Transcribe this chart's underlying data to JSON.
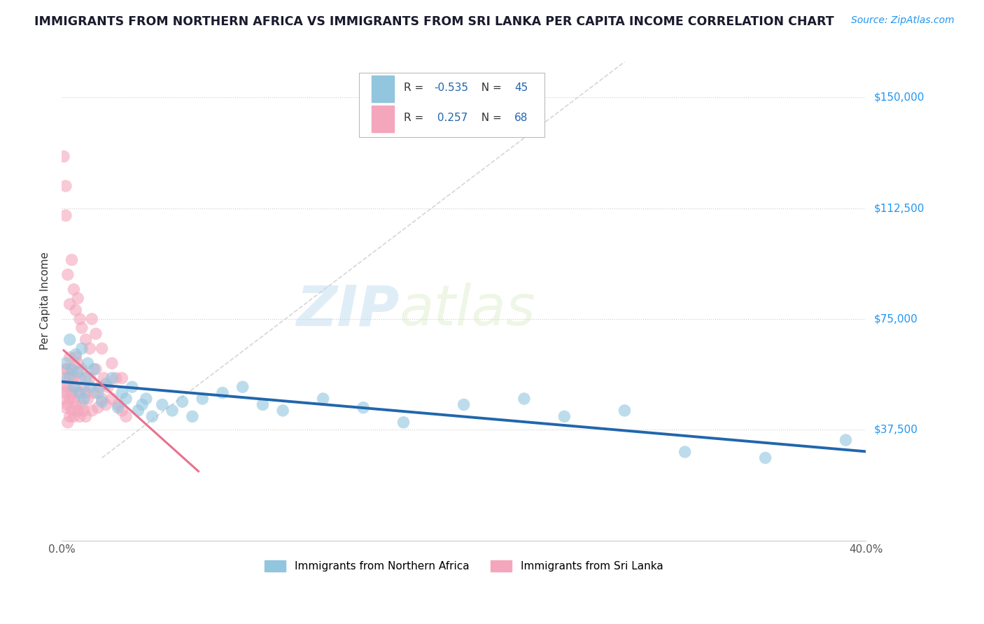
{
  "title": "IMMIGRANTS FROM NORTHERN AFRICA VS IMMIGRANTS FROM SRI LANKA PER CAPITA INCOME CORRELATION CHART",
  "source": "Source: ZipAtlas.com",
  "ylabel": "Per Capita Income",
  "xlim": [
    0.0,
    0.4
  ],
  "ylim": [
    0,
    162500
  ],
  "xticks": [
    0.0,
    0.05,
    0.1,
    0.15,
    0.2,
    0.25,
    0.3,
    0.35,
    0.4
  ],
  "xticklabels": [
    "0.0%",
    "",
    "",
    "",
    "",
    "",
    "",
    "",
    "40.0%"
  ],
  "ytick_values": [
    0,
    37500,
    75000,
    112500,
    150000
  ],
  "ytick_labels": [
    "",
    "$37,500",
    "$75,000",
    "$112,500",
    "$150,000"
  ],
  "legend_R1": "-0.535",
  "legend_N1": "45",
  "legend_R2": "0.257",
  "legend_N2": "68",
  "label_blue": "Immigrants from Northern Africa",
  "label_pink": "Immigrants from Sri Lanka",
  "blue_color": "#92c5de",
  "pink_color": "#f4a6bc",
  "blue_line_color": "#2166ac",
  "pink_line_color": "#e8718d",
  "ref_line_color": "#cccccc",
  "watermark_color": "#cce5f5",
  "blue_scatter_x": [
    0.002,
    0.003,
    0.004,
    0.005,
    0.006,
    0.007,
    0.008,
    0.009,
    0.01,
    0.011,
    0.012,
    0.013,
    0.014,
    0.016,
    0.018,
    0.02,
    0.022,
    0.025,
    0.028,
    0.03,
    0.032,
    0.035,
    0.038,
    0.04,
    0.042,
    0.045,
    0.05,
    0.055,
    0.06,
    0.065,
    0.07,
    0.08,
    0.09,
    0.1,
    0.11,
    0.13,
    0.15,
    0.17,
    0.2,
    0.23,
    0.25,
    0.28,
    0.31,
    0.35,
    0.39
  ],
  "blue_scatter_y": [
    60000,
    55000,
    68000,
    58000,
    52000,
    63000,
    57000,
    50000,
    65000,
    48000,
    55000,
    60000,
    52000,
    58000,
    50000,
    47000,
    53000,
    55000,
    45000,
    50000,
    48000,
    52000,
    44000,
    46000,
    48000,
    42000,
    46000,
    44000,
    47000,
    42000,
    48000,
    50000,
    52000,
    46000,
    44000,
    48000,
    45000,
    40000,
    46000,
    48000,
    42000,
    44000,
    30000,
    28000,
    34000
  ],
  "pink_scatter_x": [
    0.001,
    0.001,
    0.001,
    0.002,
    0.002,
    0.002,
    0.003,
    0.003,
    0.003,
    0.003,
    0.004,
    0.004,
    0.004,
    0.004,
    0.005,
    0.005,
    0.005,
    0.006,
    0.006,
    0.006,
    0.007,
    0.007,
    0.007,
    0.008,
    0.008,
    0.008,
    0.009,
    0.009,
    0.01,
    0.01,
    0.011,
    0.011,
    0.012,
    0.012,
    0.013,
    0.014,
    0.015,
    0.016,
    0.017,
    0.018,
    0.019,
    0.02,
    0.021,
    0.022,
    0.023,
    0.025,
    0.027,
    0.028,
    0.03,
    0.032,
    0.001,
    0.002,
    0.002,
    0.003,
    0.004,
    0.005,
    0.006,
    0.007,
    0.008,
    0.009,
    0.01,
    0.012,
    0.014,
    0.015,
    0.017,
    0.02,
    0.025,
    0.03
  ],
  "pink_scatter_y": [
    48000,
    52000,
    55000,
    45000,
    50000,
    58000,
    40000,
    46000,
    52000,
    58000,
    42000,
    48000,
    55000,
    62000,
    44000,
    50000,
    58000,
    42000,
    48000,
    55000,
    46000,
    52000,
    62000,
    44000,
    50000,
    60000,
    42000,
    55000,
    46000,
    58000,
    44000,
    52000,
    42000,
    50000,
    48000,
    55000,
    44000,
    50000,
    58000,
    45000,
    52000,
    48000,
    55000,
    46000,
    52000,
    48000,
    55000,
    46000,
    44000,
    42000,
    130000,
    120000,
    110000,
    90000,
    80000,
    95000,
    85000,
    78000,
    82000,
    75000,
    72000,
    68000,
    65000,
    75000,
    70000,
    65000,
    60000,
    55000
  ]
}
